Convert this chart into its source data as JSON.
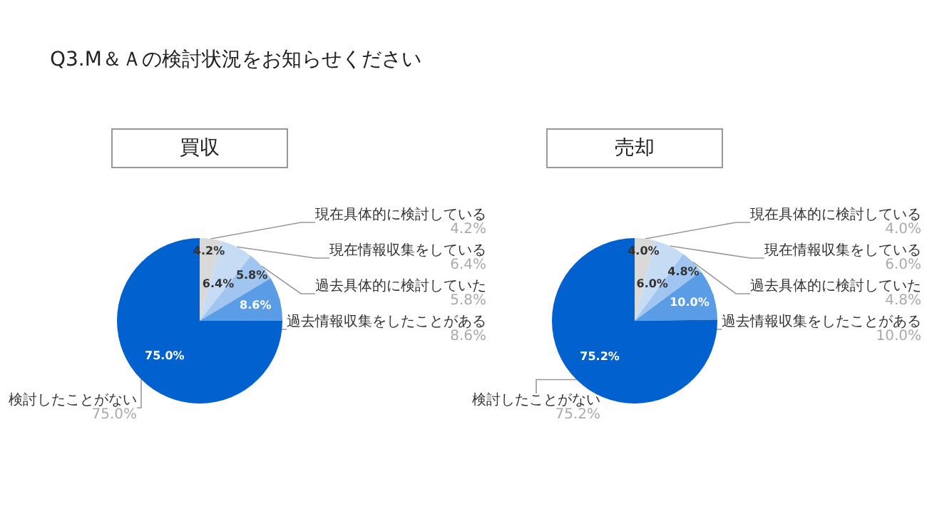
{
  "chart_data": [
    {
      "type": "pie",
      "title": "買収",
      "annotations": [
        "Q3.M＆Ａの検討状況をお知らせください"
      ],
      "categories": [
        "現在具体的に検討している",
        "現在情報収集をしている",
        "過去具体的に検討していた",
        "過去情報収集をしたことがある",
        "検討したことがない"
      ],
      "values": [
        4.2,
        6.4,
        5.8,
        8.6,
        75.0
      ],
      "value_labels": [
        "4.2%",
        "6.4%",
        "5.8%",
        "8.6%",
        "75.0%"
      ],
      "colors": [
        "#d9d9d9",
        "#c6dcf5",
        "#9fc5f0",
        "#5a9de6",
        "#0061cf"
      ]
    },
    {
      "type": "pie",
      "title": "売却",
      "categories": [
        "現在具体的に検討している",
        "現在情報収集をしている",
        "過去具体的に検討していた",
        "過去情報収集をしたことがある",
        "検討したことがない"
      ],
      "values": [
        4.0,
        6.0,
        4.8,
        10.0,
        75.2
      ],
      "value_labels": [
        "4.0%",
        "6.0%",
        "4.8%",
        "10.0%",
        "75.2%"
      ],
      "colors": [
        "#d9d9d9",
        "#c6dcf5",
        "#9fc5f0",
        "#5a9de6",
        "#0061cf"
      ]
    }
  ]
}
